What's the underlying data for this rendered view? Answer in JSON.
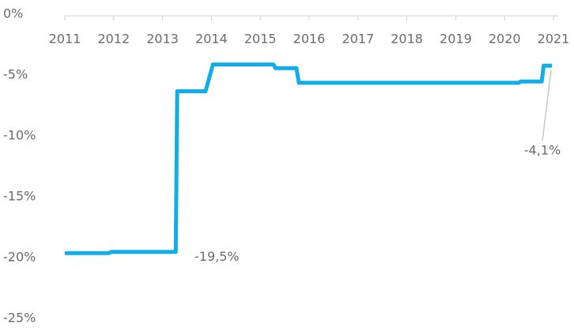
{
  "chart_data": {
    "type": "line",
    "x": [
      2011,
      2011.9,
      2011.95,
      2013.27,
      2013.3,
      2013.88,
      2014.03,
      2015.27,
      2015.31,
      2015.74,
      2015.79,
      2020.29,
      2020.33,
      2020.76,
      2020.8,
      2020.97
    ],
    "series": [
      {
        "color": "#12ade8",
        "values": [
          -19.5,
          -19.5,
          -19.4,
          -19.4,
          -6.2,
          -6.2,
          -4.0,
          -4.0,
          -4.3,
          -4.3,
          -5.5,
          -5.5,
          -5.4,
          -5.4,
          -4.1,
          -4.1
        ]
      }
    ],
    "xlim": [
      2011,
      2021
    ],
    "xticks": [
      2011,
      2012,
      2013,
      2014,
      2015,
      2016,
      2017,
      2018,
      2019,
      2020,
      2021
    ],
    "ylim": [
      -25,
      0
    ],
    "yticks": [
      {
        "value": 0,
        "label": "0%"
      },
      {
        "value": -5,
        "label": "-5%"
      },
      {
        "value": -10,
        "label": "-10%"
      },
      {
        "value": -15,
        "label": "-15%"
      },
      {
        "value": -20,
        "label": "-20%"
      },
      {
        "value": -25,
        "label": "-25%"
      }
    ],
    "annotations": [
      {
        "label": "-19,5%",
        "value": -19.5
      },
      {
        "label": "-4,1%",
        "value": -4.1
      }
    ]
  }
}
